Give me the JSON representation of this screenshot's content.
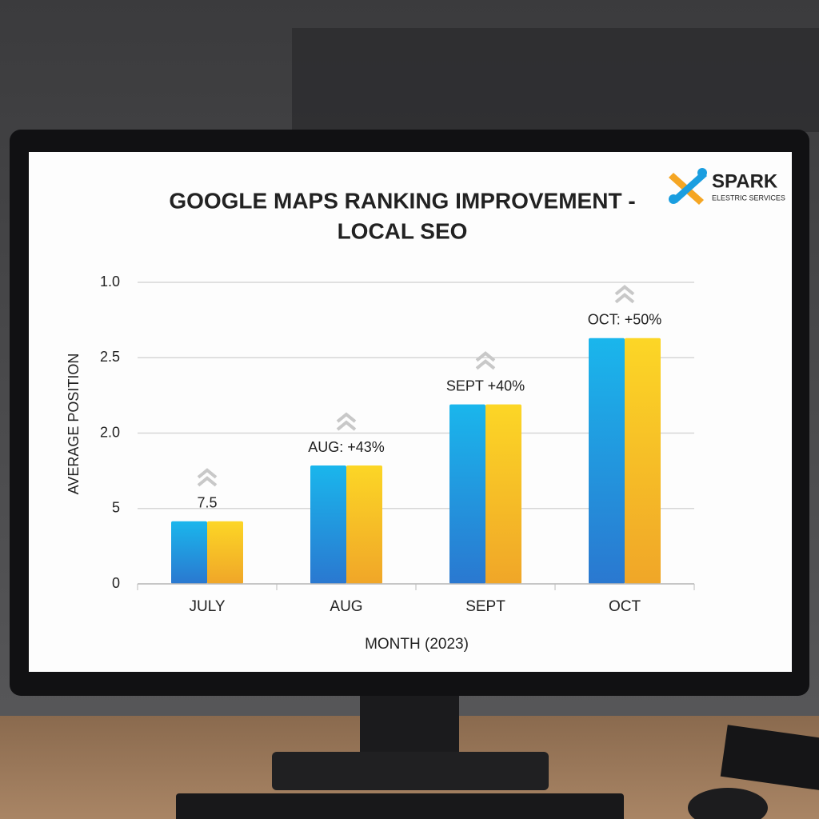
{
  "chart_data": {
    "type": "bar",
    "title": [
      "GOOGLE MAPS RANKING IMPROVEMENT -",
      "LOCAL SEO"
    ],
    "logo": {
      "name": "SPARK",
      "tagline": "ELESTRIC SERVICES"
    },
    "x_label": "MONTH (2023)",
    "y_label": "AVERAGE POSITION",
    "categories": [
      "JULY",
      "AUG",
      "SEPT",
      "OCT"
    ],
    "values": [
      0.83,
      1.57,
      2.38,
      3.26
    ],
    "annotations": [
      "7.5",
      "AUG: +43%",
      "SEPT +40%",
      "OCT: +50%"
    ],
    "colors": [
      "#1ab6ec",
      "#fcd626"
    ],
    "ylim": [
      0,
      4
    ],
    "yticks": [
      0,
      {
        "value": 1,
        "label": "5"
      },
      {
        "value": 2,
        "label": "2.0"
      },
      {
        "value": 3,
        "label": "2.5"
      },
      {
        "value": 4,
        "label": "1.0"
      }
    ],
    "grid": true
  }
}
